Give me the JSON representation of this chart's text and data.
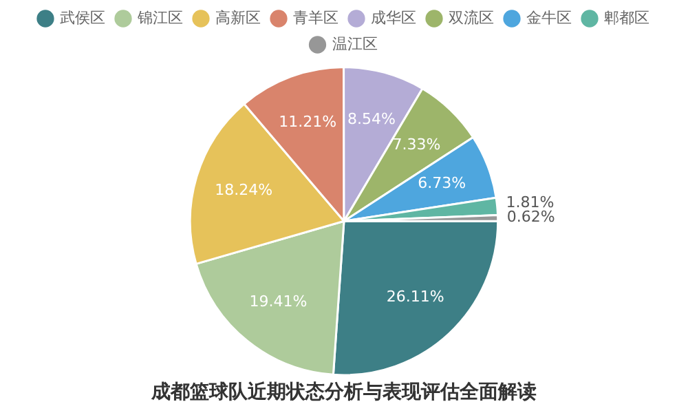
{
  "chart_data": {
    "type": "pie",
    "title": "成都篮球队近期状态分析与表现评估全面解读",
    "categories": [
      "武侯区",
      "锦江区",
      "高新区",
      "青羊区",
      "成华区",
      "双流区",
      "金牛区",
      "郫都区",
      "温江区"
    ],
    "values": [
      26.11,
      19.41,
      18.24,
      11.21,
      8.54,
      7.33,
      6.73,
      1.81,
      0.62
    ],
    "value_labels": [
      "26.11%",
      "19.41%",
      "18.24%",
      "11.21%",
      "8.54%",
      "7.33%",
      "6.73%",
      "1.81%",
      "0.62%"
    ],
    "colors": [
      "#3d7f86",
      "#aecb9b",
      "#e6c25a",
      "#d9846c",
      "#b4acd6",
      "#9db56a",
      "#4ea6de",
      "#5fb6a3",
      "#979797"
    ],
    "legend": "top"
  }
}
